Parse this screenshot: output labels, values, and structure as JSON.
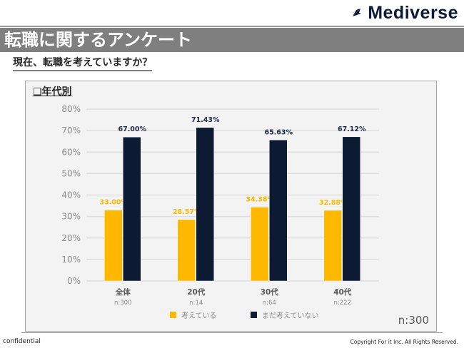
{
  "header": {
    "logo_text": "Mediverse",
    "logo_icon": "rocket-moon-icon",
    "title": "転職に関するアンケート",
    "question": "現在、転職を考えていますか？"
  },
  "panel": {
    "section_label": "❑年代別",
    "n_total": "n:300"
  },
  "footer": {
    "left": "confidential",
    "right": "Copyright For it Inc. All Rights Reserved."
  },
  "colors": {
    "considering": "#ffb800",
    "not_considering": "#0c1a34",
    "grid": "#dedede",
    "axis_text": "#8c8c8c"
  },
  "chart_data": {
    "type": "bar",
    "title": "年代別",
    "xlabel": "",
    "ylabel": "",
    "ylim": [
      0,
      80
    ],
    "yticks": [
      "0%",
      "10%",
      "20%",
      "30%",
      "40%",
      "50%",
      "60%",
      "70%",
      "80%"
    ],
    "ytick_values": [
      0,
      10,
      20,
      30,
      40,
      50,
      60,
      70,
      80
    ],
    "grid": true,
    "legend_position": "bottom",
    "categories": [
      "全体",
      "20代",
      "30代",
      "40代"
    ],
    "category_n": [
      "n:300",
      "n:14",
      "n:64",
      "n:222"
    ],
    "series": [
      {
        "name": "考えている",
        "values": [
          33.0,
          28.57,
          34.38,
          32.88
        ],
        "labels": [
          "33.00%",
          "28.57%",
          "34.38%",
          "32.88%"
        ]
      },
      {
        "name": "まだ考えていない",
        "values": [
          67.0,
          71.43,
          65.63,
          67.12
        ],
        "labels": [
          "67.00%",
          "71.43%",
          "65.63%",
          "67.12%"
        ]
      }
    ]
  }
}
